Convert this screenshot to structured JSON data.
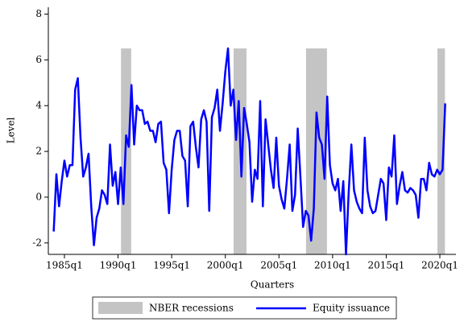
{
  "chart_data": {
    "type": "line",
    "x_label": "Quarters",
    "y_label": "Level",
    "x": [
      1984,
      1984.25,
      1984.5,
      1984.75,
      1985,
      1985.25,
      1985.5,
      1985.75,
      1986,
      1986.25,
      1986.5,
      1986.75,
      1987,
      1987.25,
      1987.5,
      1987.75,
      1988,
      1988.25,
      1988.5,
      1988.75,
      1989,
      1989.25,
      1989.5,
      1989.75,
      1990,
      1990.25,
      1990.5,
      1990.75,
      1991,
      1991.25,
      1991.5,
      1991.75,
      1992,
      1992.25,
      1992.5,
      1992.75,
      1993,
      1993.25,
      1993.5,
      1993.75,
      1994,
      1994.25,
      1994.5,
      1994.75,
      1995,
      1995.25,
      1995.5,
      1995.75,
      1996,
      1996.25,
      1996.5,
      1996.75,
      1997,
      1997.25,
      1997.5,
      1997.75,
      1998,
      1998.25,
      1998.5,
      1998.75,
      1999,
      1999.25,
      1999.5,
      1999.75,
      2000,
      2000.25,
      2000.5,
      2000.75,
      2001,
      2001.25,
      2001.5,
      2001.75,
      2002,
      2002.25,
      2002.5,
      2002.75,
      2003,
      2003.25,
      2003.5,
      2003.75,
      2004,
      2004.25,
      2004.5,
      2004.75,
      2005,
      2005.25,
      2005.5,
      2005.75,
      2006,
      2006.25,
      2006.5,
      2006.75,
      2007,
      2007.25,
      2007.5,
      2007.75,
      2008,
      2008.25,
      2008.5,
      2008.75,
      2009,
      2009.25,
      2009.5,
      2009.75,
      2010,
      2010.25,
      2010.5,
      2010.75,
      2011,
      2011.25,
      2011.5,
      2011.75,
      2012,
      2012.25,
      2012.5,
      2012.75,
      2013,
      2013.25,
      2013.5,
      2013.75,
      2014,
      2014.25,
      2014.5,
      2014.75,
      2015,
      2015.25,
      2015.5,
      2015.75,
      2016,
      2016.25,
      2016.5,
      2016.75,
      2017,
      2017.25,
      2017.5,
      2017.75,
      2018,
      2018.25,
      2018.5,
      2018.75,
      2019,
      2019.25,
      2019.5,
      2019.75,
      2020,
      2020.25,
      2020.5
    ],
    "series": [
      {
        "name": "Equity issuance",
        "color": "#0000ff",
        "values": [
          -1.5,
          1.0,
          -0.4,
          0.7,
          1.6,
          0.9,
          1.4,
          1.4,
          4.7,
          5.2,
          2.6,
          0.9,
          1.3,
          1.9,
          -0.4,
          -2.1,
          -0.9,
          -0.5,
          0.3,
          0.1,
          -0.3,
          2.3,
          0.5,
          1.1,
          -0.3,
          1.3,
          -0.3,
          2.7,
          2.2,
          4.9,
          2.3,
          4.0,
          3.8,
          3.8,
          3.2,
          3.3,
          2.9,
          2.9,
          2.4,
          3.2,
          3.3,
          1.5,
          1.2,
          -0.7,
          1.2,
          2.5,
          2.9,
          2.9,
          1.8,
          1.6,
          -0.4,
          3.1,
          3.3,
          2.2,
          1.3,
          3.4,
          3.8,
          3.3,
          -0.6,
          3.5,
          3.9,
          4.7,
          2.9,
          4.1,
          5.5,
          6.5,
          4.0,
          4.7,
          2.5,
          4.2,
          0.9,
          3.9,
          3.2,
          2.4,
          -0.2,
          1.2,
          0.8,
          4.2,
          -0.4,
          3.4,
          2.3,
          1.2,
          0.4,
          2.6,
          0.5,
          -0.1,
          -0.5,
          0.8,
          2.3,
          -0.6,
          0.1,
          3.0,
          0.9,
          -1.3,
          -0.6,
          -0.8,
          -1.9,
          -0.5,
          3.7,
          2.6,
          2.3,
          0.8,
          4.4,
          1.4,
          0.6,
          0.3,
          0.8,
          -0.6,
          0.7,
          -2.5,
          0.2,
          2.3,
          0.3,
          -0.2,
          -0.5,
          -0.7,
          2.6,
          0.3,
          -0.4,
          -0.7,
          -0.6,
          0.1,
          0.8,
          0.6,
          -1.0,
          1.3,
          0.9,
          2.7,
          -0.3,
          0.5,
          1.1,
          0.3,
          0.2,
          0.4,
          0.3,
          0.1,
          -0.9,
          0.8,
          0.8,
          0.3,
          1.5,
          1.0,
          0.9,
          1.2,
          1.0,
          1.2,
          4.1
        ]
      }
    ],
    "shading": {
      "name": "NBER recessions",
      "color": "#c4c4c4",
      "range": [
        -2.5,
        6.5
      ],
      "periods": [
        [
          1990.5,
          1991
        ],
        [
          2001,
          2001.75
        ],
        [
          2007.75,
          2009.25
        ],
        [
          2020,
          2020.25
        ]
      ]
    },
    "xlim": [
      1983.5,
      2021.5
    ],
    "xticks": [
      {
        "value": 1985,
        "label": "1985q1"
      },
      {
        "value": 1990,
        "label": "1990q1"
      },
      {
        "value": 1995,
        "label": "1995q1"
      },
      {
        "value": 2000,
        "label": "2000q1"
      },
      {
        "value": 2005,
        "label": "2005q1"
      },
      {
        "value": 2010,
        "label": "2010q1"
      },
      {
        "value": 2015,
        "label": "2015q1"
      },
      {
        "value": 2020,
        "label": "2020q1"
      }
    ],
    "ylim": [
      -2.5,
      8.3
    ],
    "yticks": [
      -2,
      0,
      2,
      4,
      6,
      8
    ],
    "legend": "bottom"
  }
}
